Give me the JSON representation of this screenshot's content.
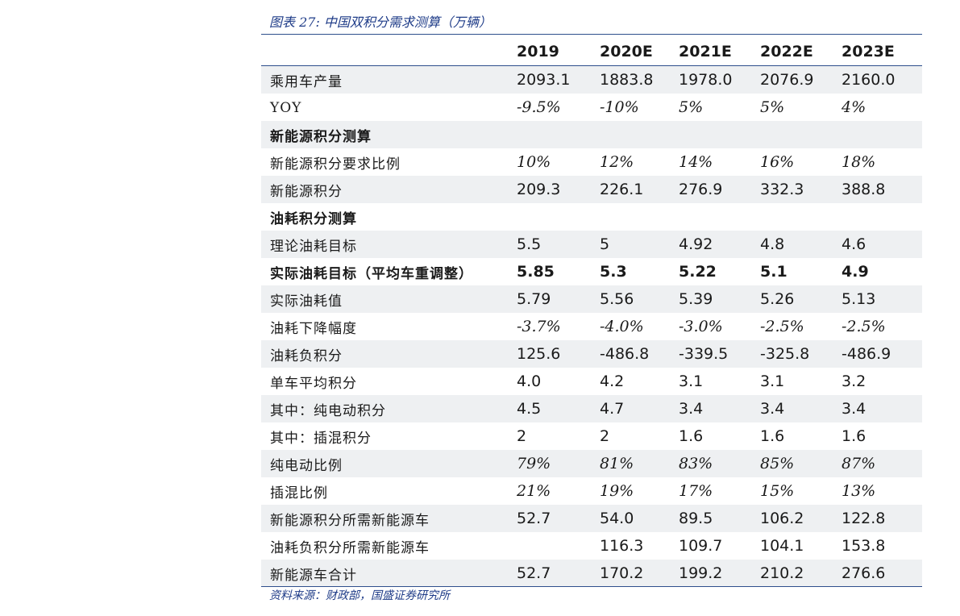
{
  "caption": "图表 27:  中国双积分需求测算（万辆）",
  "source": "资料来源：财政部，国盛证券研究所",
  "columns": [
    "",
    "2019",
    "2020E",
    "2021E",
    "2022E",
    "2023E"
  ],
  "rows": [
    {
      "label": "乘用车产量",
      "values": [
        "2093.1",
        "1883.8",
        "1978.0",
        "2076.9",
        "2160.0"
      ],
      "style": "normal"
    },
    {
      "label": "YOY",
      "values": [
        "-9.5%",
        "-10%",
        "5%",
        "5%",
        "4%"
      ],
      "style": "italic"
    },
    {
      "label": "新能源积分测算",
      "values": [
        "",
        "",
        "",
        "",
        ""
      ],
      "style": "section"
    },
    {
      "label": "新能源积分要求比例",
      "values": [
        "10%",
        "12%",
        "14%",
        "16%",
        "18%"
      ],
      "style": "italic"
    },
    {
      "label": "新能源积分",
      "values": [
        "209.3",
        "226.1",
        "276.9",
        "332.3",
        "388.8"
      ],
      "style": "normal"
    },
    {
      "label": "油耗积分测算",
      "values": [
        "",
        "",
        "",
        "",
        ""
      ],
      "style": "section"
    },
    {
      "label": "理论油耗目标",
      "values": [
        "5.5",
        "5",
        "4.92",
        "4.8",
        "4.6"
      ],
      "style": "normal"
    },
    {
      "label": "实际油耗目标（平均车重调整）",
      "values": [
        "5.85",
        "5.3",
        "5.22",
        "5.1",
        "4.9"
      ],
      "style": "bold"
    },
    {
      "label": "实际油耗值",
      "values": [
        "5.79",
        "5.56",
        "5.39",
        "5.26",
        "5.13"
      ],
      "style": "normal"
    },
    {
      "label": "油耗下降幅度",
      "values": [
        "-3.7%",
        "-4.0%",
        "-3.0%",
        "-2.5%",
        "-2.5%"
      ],
      "style": "italic"
    },
    {
      "label": "油耗负积分",
      "values": [
        "125.6",
        "-486.8",
        "-339.5",
        "-325.8",
        "-486.9"
      ],
      "style": "normal"
    },
    {
      "label": "单车平均积分",
      "values": [
        "4.0",
        "4.2",
        "3.1",
        "3.1",
        "3.2"
      ],
      "style": "normal"
    },
    {
      "label": "其中：纯电动积分",
      "values": [
        "4.5",
        "4.7",
        "3.4",
        "3.4",
        "3.4"
      ],
      "style": "normal"
    },
    {
      "label": "其中：插混积分",
      "values": [
        "2",
        "2",
        "1.6",
        "1.6",
        "1.6"
      ],
      "style": "normal"
    },
    {
      "label": "纯电动比例",
      "values": [
        "79%",
        "81%",
        "83%",
        "85%",
        "87%"
      ],
      "style": "italic"
    },
    {
      "label": "插混比例",
      "values": [
        "21%",
        "19%",
        "17%",
        "15%",
        "13%"
      ],
      "style": "italic"
    },
    {
      "label": "新能源积分所需新能源车",
      "values": [
        "52.7",
        "54.0",
        "89.5",
        "106.2",
        "122.8"
      ],
      "style": "normal"
    },
    {
      "label": "油耗负积分所需新能源车",
      "values": [
        "",
        "116.3",
        "109.7",
        "104.1",
        "153.8"
      ],
      "style": "normal"
    },
    {
      "label": "新能源车合计",
      "values": [
        "52.7",
        "170.2",
        "199.2",
        "210.2",
        "276.6"
      ],
      "style": "normal"
    }
  ]
}
